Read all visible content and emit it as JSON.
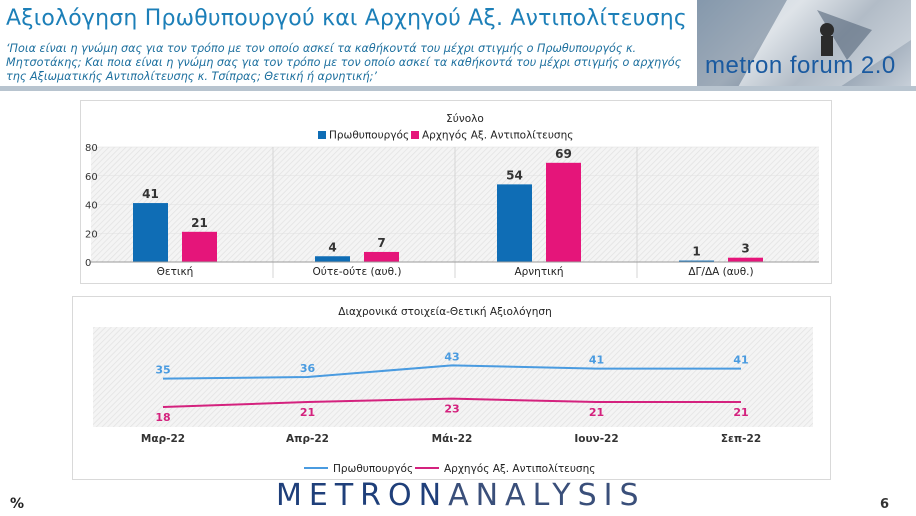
{
  "header": {
    "title": "Αξιολόγηση Πρωθυπουργού και Αρχηγού Αξ. Αντιπολίτευσης",
    "question": "‘Ποια είναι η γνώμη σας για τον τρόπο με τον οποίο ασκεί τα καθήκοντά του μέχρι στιγμής ο Πρωθυπουργός κ. Μητσοτάκης; Και ποια είναι η γνώμη σας για τον τρόπο με τον οποίο ασκεί τα καθήκοντά του μέχρι στιγμής ο αρχηγός της Αξιωματικής Αντιπολίτευσης κ. Τσίπρας; Θετική ή αρνητική;’",
    "logo_text": "metron forum 2.0"
  },
  "colors": {
    "pm": "#0f6db5",
    "opp": "#e5157a",
    "pm_line": "#4a9be0",
    "opp_line": "#d4227e"
  },
  "chart_data": [
    {
      "type": "bar",
      "title": "Σύνολο",
      "categories": [
        "Θετική",
        "Ούτε-ούτε (αυθ.)",
        "Αρνητική",
        "ΔΓ/ΔΑ (αυθ.)"
      ],
      "series": [
        {
          "name": "Πρωθυπουργός",
          "values": [
            41,
            4,
            54,
            1
          ]
        },
        {
          "name": "Αρχηγός Αξ. Αντιπολίτευσης",
          "values": [
            21,
            7,
            69,
            3
          ]
        }
      ],
      "y_ticks": [
        0,
        20,
        40,
        60,
        80
      ],
      "ylim": [
        0,
        80
      ],
      "legend": "top"
    },
    {
      "type": "line",
      "title": "Διαχρονικά στοιχεία-Θετική Αξιολόγηση",
      "categories": [
        "Μαρ-22",
        "Απρ-22",
        "Μάι-22",
        "Ιουν-22",
        "Σεπ-22"
      ],
      "series": [
        {
          "name": "Πρωθυπουργός",
          "values": [
            35,
            36,
            43,
            41,
            41
          ]
        },
        {
          "name": "Αρχηγός Αξ. Αντιπολίτευσης",
          "values": [
            18,
            21,
            23,
            21,
            21
          ]
        }
      ],
      "legend": "bottom"
    }
  ],
  "footer": {
    "unit": "%",
    "brand_a": "METRON",
    "brand_b": "ANALYSIS",
    "page": "6"
  }
}
